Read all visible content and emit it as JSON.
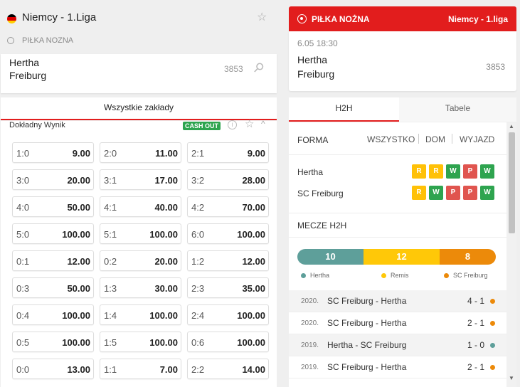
{
  "left": {
    "league": "Niemcy - 1.Liga",
    "sport": "PIŁKA NOZNA",
    "match": {
      "home": "Hertha",
      "away": "Freiburg",
      "id": "3853"
    },
    "all_bets_label": "Wszystkie zakłady",
    "market": {
      "title": "Dokładny Wynik",
      "cashout": "CASH OUT",
      "info": "i",
      "odds": [
        {
          "score": "1:0",
          "odd": "9.00"
        },
        {
          "score": "2:0",
          "odd": "11.00"
        },
        {
          "score": "2:1",
          "odd": "9.00"
        },
        {
          "score": "3:0",
          "odd": "20.00"
        },
        {
          "score": "3:1",
          "odd": "17.00"
        },
        {
          "score": "3:2",
          "odd": "28.00"
        },
        {
          "score": "4:0",
          "odd": "50.00"
        },
        {
          "score": "4:1",
          "odd": "40.00"
        },
        {
          "score": "4:2",
          "odd": "70.00"
        },
        {
          "score": "5:0",
          "odd": "100.00"
        },
        {
          "score": "5:1",
          "odd": "100.00"
        },
        {
          "score": "6:0",
          "odd": "100.00"
        },
        {
          "score": "0:1",
          "odd": "12.00"
        },
        {
          "score": "0:2",
          "odd": "20.00"
        },
        {
          "score": "1:2",
          "odd": "12.00"
        },
        {
          "score": "0:3",
          "odd": "50.00"
        },
        {
          "score": "1:3",
          "odd": "30.00"
        },
        {
          "score": "2:3",
          "odd": "35.00"
        },
        {
          "score": "0:4",
          "odd": "100.00"
        },
        {
          "score": "1:4",
          "odd": "100.00"
        },
        {
          "score": "2:4",
          "odd": "100.00"
        },
        {
          "score": "0:5",
          "odd": "100.00"
        },
        {
          "score": "1:5",
          "odd": "100.00"
        },
        {
          "score": "0:6",
          "odd": "100.00"
        },
        {
          "score": "0:0",
          "odd": "13.00"
        },
        {
          "score": "1:1",
          "odd": "7.00"
        },
        {
          "score": "2:2",
          "odd": "14.00"
        }
      ]
    }
  },
  "right": {
    "sport": "PIŁKA NOŻNA",
    "league": "Niemcy - 1.liga",
    "match": {
      "date": "6.05  18:30",
      "home": "Hertha",
      "away": "Freiburg",
      "id": "3853"
    },
    "tabs": {
      "h2h": "H2H",
      "tables": "Tabele"
    },
    "forma": {
      "label": "FORMA",
      "filters": [
        "WSZYSTKO",
        "DOM",
        "WYJAZD"
      ],
      "teams": [
        {
          "name": "Hertha",
          "results": [
            "R",
            "R",
            "W",
            "P",
            "W"
          ]
        },
        {
          "name": "SC Freiburg",
          "results": [
            "R",
            "W",
            "P",
            "P",
            "W"
          ]
        }
      ]
    },
    "h2h": {
      "title": "MECZE H2H",
      "home_wins": "10",
      "draws": "12",
      "away_wins": "8",
      "legend": {
        "home": "Hertha",
        "draw": "Remis",
        "away": "SC Freiburg"
      },
      "colors": {
        "home": "#5e9f9a",
        "draw": "#ffc808",
        "away": "#ec8a0a"
      },
      "matches": [
        {
          "year": "2020.",
          "teams": "SC Freiburg - Hertha",
          "score": "4 - 1",
          "dot": "#ec8a0a"
        },
        {
          "year": "2020.",
          "teams": "SC Freiburg - Hertha",
          "score": "2 - 1",
          "dot": "#ec8a0a"
        },
        {
          "year": "2019.",
          "teams": "Hertha - SC Freiburg",
          "score": "1 - 0",
          "dot": "#5e9f9a"
        },
        {
          "year": "2019.",
          "teams": "SC Freiburg - Hertha",
          "score": "2 - 1",
          "dot": "#ec8a0a"
        }
      ]
    }
  }
}
